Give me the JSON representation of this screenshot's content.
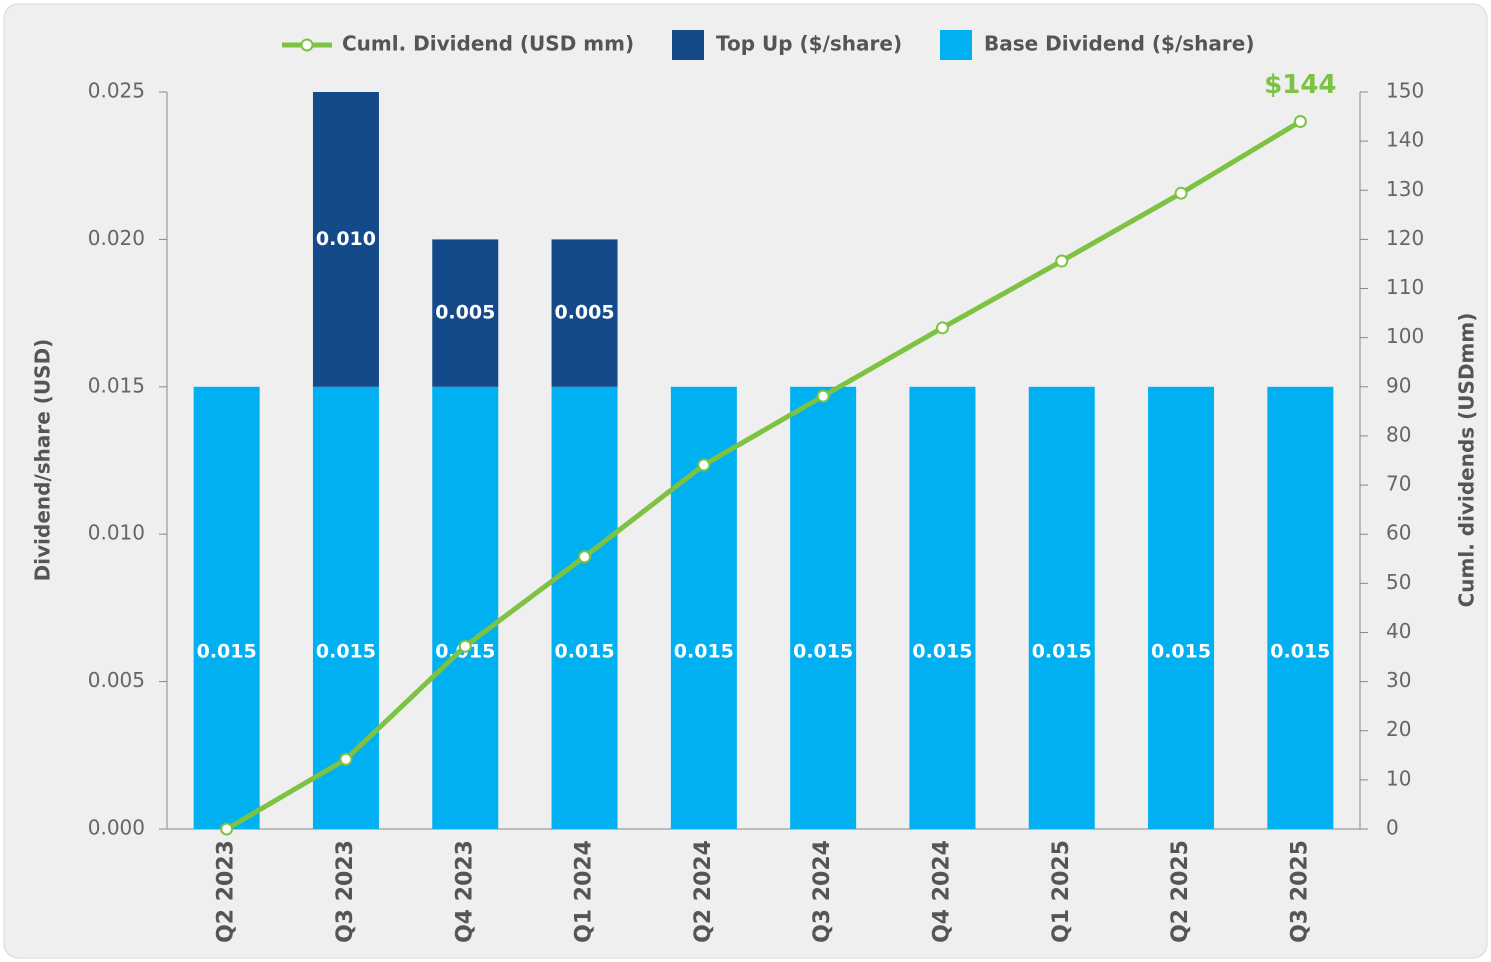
{
  "chart_data": {
    "type": "bar",
    "categories": [
      "Q2 2023",
      "Q3 2023",
      "Q4 2023",
      "Q1 2024",
      "Q2 2024",
      "Q3 2024",
      "Q4 2024",
      "Q1 2025",
      "Q2 2025",
      "Q3 2025"
    ],
    "series": [
      {
        "name": "Base Dividend ($/share)",
        "color": "#00b0f0",
        "values": [
          0.015,
          0.015,
          0.015,
          0.015,
          0.015,
          0.015,
          0.015,
          0.015,
          0.015,
          0.015
        ]
      },
      {
        "name": "Top Up ($/share)",
        "color": "#154a8a",
        "values": [
          0,
          0.01,
          0.005,
          0.005,
          0,
          0,
          0,
          0,
          0,
          0
        ],
        "value_labels": [
          null,
          "0.010",
          "0.005",
          "0.005",
          null,
          null,
          null,
          null,
          null,
          null
        ]
      },
      {
        "name": "Cuml. Dividend (USD mm)",
        "color": "#7dc242",
        "type": "line",
        "axis": "y2",
        "values": [
          0,
          14.2,
          37.2,
          55.4,
          74.1,
          88.1,
          102,
          115.6,
          129.4,
          144
        ]
      }
    ],
    "annotation": "$144",
    "ylabel": "Dividend/share (USD)",
    "y2label": "Cuml. dividends (USDmm)",
    "ylim": [
      0,
      0.025
    ],
    "yticks": [
      {
        "value": 0,
        "label": "0.000"
      },
      0.005,
      {
        "value": 0.01,
        "label": "0.010"
      },
      0.015,
      {
        "value": 0.02,
        "label": "0.020"
      },
      0.025
    ],
    "y2lim": [
      0,
      150
    ],
    "y2ticks": [
      0,
      10,
      20,
      30,
      40,
      50,
      60,
      70,
      80,
      90,
      100,
      110,
      120,
      130,
      140,
      150
    ],
    "legend": "top"
  }
}
